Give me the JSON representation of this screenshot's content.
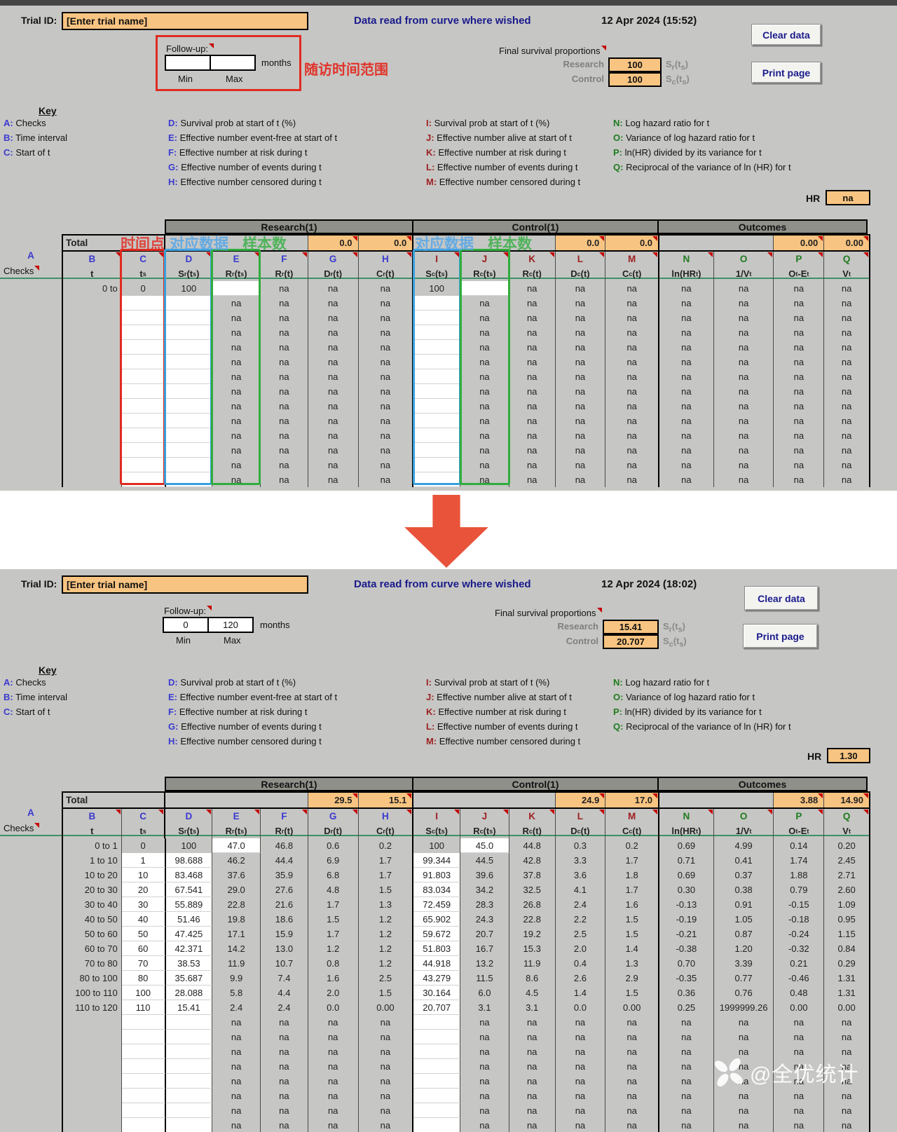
{
  "page": {
    "watermark_text": "@全优统计"
  },
  "annotations": {
    "followup_range": "随访时间范围",
    "time_point": "时间点",
    "data_label_research": "对应数据",
    "sample_label_research": "样本数",
    "data_label_control": "对应数据",
    "sample_label_control": "样本数"
  },
  "key": {
    "title": "Key",
    "col1": [
      {
        "k": "A:",
        "d": "Checks"
      },
      {
        "k": "B:",
        "d": "Time interval"
      },
      {
        "k": "C:",
        "d": "Start of t"
      }
    ],
    "col2": [
      {
        "k": "D:",
        "d": "Survival prob at start of t (%)"
      },
      {
        "k": "E:",
        "d": "Effective number event-free at start of t"
      },
      {
        "k": "F:",
        "d": "Effective number at risk during t"
      },
      {
        "k": "G:",
        "d": "Effective number of events during t"
      },
      {
        "k": "H:",
        "d": "Effective number censored during t"
      }
    ],
    "col3": [
      {
        "k": "I:",
        "d": "Survival prob at start of t (%)"
      },
      {
        "k": "J:",
        "d": "Effective number alive at start of t"
      },
      {
        "k": "K:",
        "d": "Effective number at risk during t"
      },
      {
        "k": "L:",
        "d": "Effective number of events during t"
      },
      {
        "k": "M:",
        "d": "Effective number censored during t"
      }
    ],
    "col4": [
      {
        "k": "N:",
        "d": "Log hazard ratio for t"
      },
      {
        "k": "O:",
        "d": "Variance of log hazard ratio for t"
      },
      {
        "k": "P:",
        "d": "ln(HR) divided by its variance for t"
      },
      {
        "k": "Q:",
        "d": "Reciprocal of the variance of ln (HR) for t"
      }
    ]
  },
  "table_shared": {
    "group_headers": [
      "Research(1)",
      "Control(1)",
      "Outcomes"
    ],
    "total_label": "Total",
    "checks_letter": "A",
    "checks_label": "Checks",
    "col_letters": [
      "B",
      "C",
      "D",
      "E",
      "F",
      "G",
      "H",
      "I",
      "J",
      "K",
      "L",
      "M",
      "N",
      "O",
      "P",
      "Q"
    ],
    "col_sublabels": [
      "t",
      "t_s",
      "S_r(t_s)",
      "R_r(t_s)",
      "R_r(t)",
      "D_r(t)",
      "C_r(t)",
      "S_c(t_s)",
      "R_c(t_s)",
      "R_c(t)",
      "D_c(t)",
      "C_c(t)",
      "ln(HR_t)",
      "1/V_t",
      "O_t-E_t",
      "V_t"
    ]
  },
  "panel_before": {
    "trial_id_label": "Trial ID:",
    "trial_id_value": "[Enter trial name]",
    "center_title": "Data read from curve where wished",
    "timestamp": "12 Apr 2024 (15:52)",
    "clear_button": "Clear data",
    "print_button": "Print page",
    "followup_label": "Follow-up:",
    "followup_min": "",
    "followup_max": "",
    "followup_unit": "months",
    "min_label": "Min",
    "max_label": "Max",
    "final_label": "Final survival proportions",
    "research_label": "Research",
    "research_value": "100",
    "research_suffix": "S_r(t_s)",
    "control_label": "Control",
    "control_value": "100",
    "control_suffix": "S_c(t_s)",
    "hr_label": "HR",
    "hr_value": "na",
    "table": {
      "totals_research": [
        "0.0",
        "0.0"
      ],
      "totals_control": [
        "0.0",
        "0.0"
      ],
      "totals_outcomes": [
        "0.00",
        "0.00"
      ],
      "rows": [
        [
          "0 to",
          "0",
          "100",
          "",
          "na",
          "na",
          "na",
          "100",
          "",
          "na",
          "na",
          "na",
          "na",
          "na",
          "na",
          "na"
        ]
      ],
      "na_row": [
        "",
        "",
        "",
        "na",
        "na",
        "na",
        "na",
        "",
        "na",
        "na",
        "na",
        "na",
        "na",
        "na",
        "na",
        "na"
      ],
      "na_row_count": 13
    }
  },
  "panel_after": {
    "trial_id_label": "Trial ID:",
    "trial_id_value": "[Enter trial name]",
    "center_title": "Data read from curve where wished",
    "timestamp": "12 Apr 2024 (18:02)",
    "clear_button": "Clear data",
    "print_button": "Print page",
    "followup_label": "Follow-up:",
    "followup_min": "0",
    "followup_max": "120",
    "followup_unit": "months",
    "min_label": "Min",
    "max_label": "Max",
    "final_label": "Final survival proportions",
    "research_label": "Research",
    "research_value": "15.41",
    "research_suffix": "S_r(t_s)",
    "control_label": "Control",
    "control_value": "20.707",
    "control_suffix": "S_c(t_s)",
    "hr_label": "HR",
    "hr_value": "1.30",
    "table": {
      "totals_research": [
        "29.5",
        "15.1"
      ],
      "totals_control": [
        "24.9",
        "17.0"
      ],
      "totals_outcomes": [
        "3.88",
        "14.90"
      ],
      "rows": [
        [
          "0 to 1",
          "0",
          "100",
          "47.0",
          "46.8",
          "0.6",
          "0.2",
          "100",
          "45.0",
          "44.8",
          "0.3",
          "0.2",
          "0.69",
          "4.99",
          "0.14",
          "0.20"
        ],
        [
          "1 to 10",
          "1",
          "98.688",
          "46.2",
          "44.4",
          "6.9",
          "1.7",
          "99.344",
          "44.5",
          "42.8",
          "3.3",
          "1.7",
          "0.71",
          "0.41",
          "1.74",
          "2.45"
        ],
        [
          "10 to 20",
          "10",
          "83.468",
          "37.6",
          "35.9",
          "6.8",
          "1.7",
          "91.803",
          "39.6",
          "37.8",
          "3.6",
          "1.8",
          "0.69",
          "0.37",
          "1.88",
          "2.71"
        ],
        [
          "20 to 30",
          "20",
          "67.541",
          "29.0",
          "27.6",
          "4.8",
          "1.5",
          "83.034",
          "34.2",
          "32.5",
          "4.1",
          "1.7",
          "0.30",
          "0.38",
          "0.79",
          "2.60"
        ],
        [
          "30 to 40",
          "30",
          "55.889",
          "22.8",
          "21.6",
          "1.7",
          "1.3",
          "72.459",
          "28.3",
          "26.8",
          "2.4",
          "1.6",
          "-0.13",
          "0.91",
          "-0.15",
          "1.09"
        ],
        [
          "40 to 50",
          "40",
          "51.46",
          "19.8",
          "18.6",
          "1.5",
          "1.2",
          "65.902",
          "24.3",
          "22.8",
          "2.2",
          "1.5",
          "-0.19",
          "1.05",
          "-0.18",
          "0.95"
        ],
        [
          "50 to 60",
          "50",
          "47.425",
          "17.1",
          "15.9",
          "1.7",
          "1.2",
          "59.672",
          "20.7",
          "19.2",
          "2.5",
          "1.5",
          "-0.21",
          "0.87",
          "-0.24",
          "1.15"
        ],
        [
          "60 to 70",
          "60",
          "42.371",
          "14.2",
          "13.0",
          "1.2",
          "1.2",
          "51.803",
          "16.7",
          "15.3",
          "2.0",
          "1.4",
          "-0.38",
          "1.20",
          "-0.32",
          "0.84"
        ],
        [
          "70 to 80",
          "70",
          "38.53",
          "11.9",
          "10.7",
          "0.8",
          "1.2",
          "44.918",
          "13.2",
          "11.9",
          "0.4",
          "1.3",
          "0.70",
          "3.39",
          "0.21",
          "0.29"
        ],
        [
          "80 to 100",
          "80",
          "35.687",
          "9.9",
          "7.4",
          "1.6",
          "2.5",
          "43.279",
          "11.5",
          "8.6",
          "2.6",
          "2.9",
          "-0.35",
          "0.77",
          "-0.46",
          "1.31"
        ],
        [
          "100 to 110",
          "100",
          "28.088",
          "5.8",
          "4.4",
          "2.0",
          "1.5",
          "30.164",
          "6.0",
          "4.5",
          "1.4",
          "1.5",
          "0.36",
          "0.76",
          "0.48",
          "1.31"
        ],
        [
          "110 to 120",
          "110",
          "15.41",
          "2.4",
          "2.4",
          "0.0",
          "0.00",
          "20.707",
          "3.1",
          "3.1",
          "0.0",
          "0.00",
          "0.25",
          "1999999.26",
          "0.00",
          "0.00"
        ]
      ],
      "na_row": [
        "",
        "",
        "",
        "na",
        "na",
        "na",
        "na",
        "",
        "na",
        "na",
        "na",
        "na",
        "na",
        "na",
        "na",
        "na"
      ],
      "na_row_count": 9
    }
  }
}
